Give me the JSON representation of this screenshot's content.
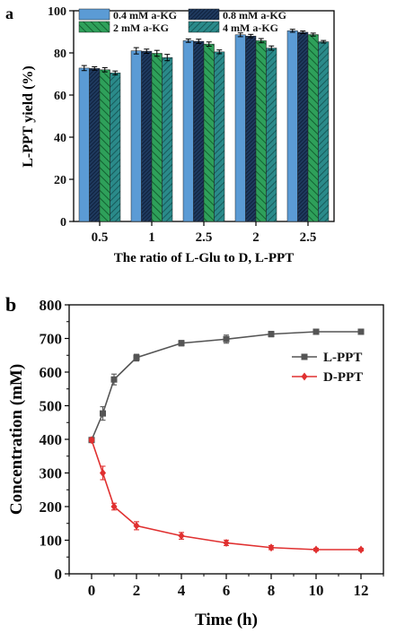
{
  "chart_data": [
    {
      "panel_label": "a",
      "type": "bar",
      "ylabel": "L-PPT yield (%)",
      "xlabel": "The ratio of  L-Glu to D, L-PPT",
      "ylim": [
        0,
        100
      ],
      "yticks": [
        "0",
        "20",
        "40",
        "60",
        "80",
        "100"
      ],
      "categories": [
        "0.5",
        "1",
        "2.5",
        "2",
        "2.5"
      ],
      "grid": false,
      "legend_position": "top-left",
      "series": [
        {
          "name": "0.4 mM a-KG",
          "color": "#5b9bd5",
          "pattern": "solid",
          "values": [
            72.8,
            81.0,
            85.8,
            88.6,
            90.5
          ],
          "errors": [
            1.2,
            1.5,
            0.8,
            0.9,
            0.7
          ]
        },
        {
          "name": "0.8 mM a-KG",
          "color": "#1f3a5f",
          "pattern": "dense",
          "values": [
            72.6,
            80.8,
            85.5,
            88.0,
            89.8
          ],
          "errors": [
            0.8,
            1.0,
            1.0,
            0.8,
            0.6
          ]
        },
        {
          "name": "2 mM a-KG",
          "color": "#2ea05a",
          "pattern": "green-hatch",
          "values": [
            72.0,
            79.8,
            84.2,
            85.8,
            88.7
          ],
          "errors": [
            1.0,
            1.4,
            1.0,
            1.0,
            0.7
          ]
        },
        {
          "name": "4 mM a-KG",
          "color": "#2a8a8a",
          "pattern": "teal-hatch",
          "values": [
            70.5,
            77.8,
            80.5,
            82.3,
            85.3
          ],
          "errors": [
            0.9,
            1.5,
            0.9,
            1.0,
            0.6
          ]
        }
      ]
    },
    {
      "panel_label": "b",
      "type": "line",
      "ylabel": "Concentration (mM)",
      "xlabel": "Time (h)",
      "xlim": [
        -1,
        13
      ],
      "ylim": [
        0,
        800
      ],
      "xticks": [
        "0",
        "2",
        "4",
        "6",
        "8",
        "10",
        "12"
      ],
      "yticks": [
        "0",
        "100",
        "200",
        "300",
        "400",
        "500",
        "600",
        "700",
        "800"
      ],
      "grid": false,
      "legend_position": "top-right",
      "series": [
        {
          "name": "L-PPT",
          "color": "#555555",
          "marker": "square",
          "x": [
            0,
            0.5,
            1,
            2,
            4,
            6,
            8,
            10,
            12
          ],
          "y": [
            398,
            477,
            578,
            643,
            686,
            698,
            713,
            720,
            720
          ],
          "errors": [
            5,
            20,
            16,
            10,
            8,
            12,
            8,
            6,
            6
          ]
        },
        {
          "name": "D-PPT",
          "color": "#e03030",
          "marker": "diamond",
          "x": [
            0,
            0.5,
            1,
            2,
            4,
            6,
            8,
            10,
            12
          ],
          "y": [
            398,
            300,
            200,
            143,
            113,
            92,
            78,
            72,
            72
          ],
          "errors": [
            5,
            20,
            10,
            12,
            10,
            8,
            6,
            4,
            4
          ]
        }
      ]
    }
  ]
}
